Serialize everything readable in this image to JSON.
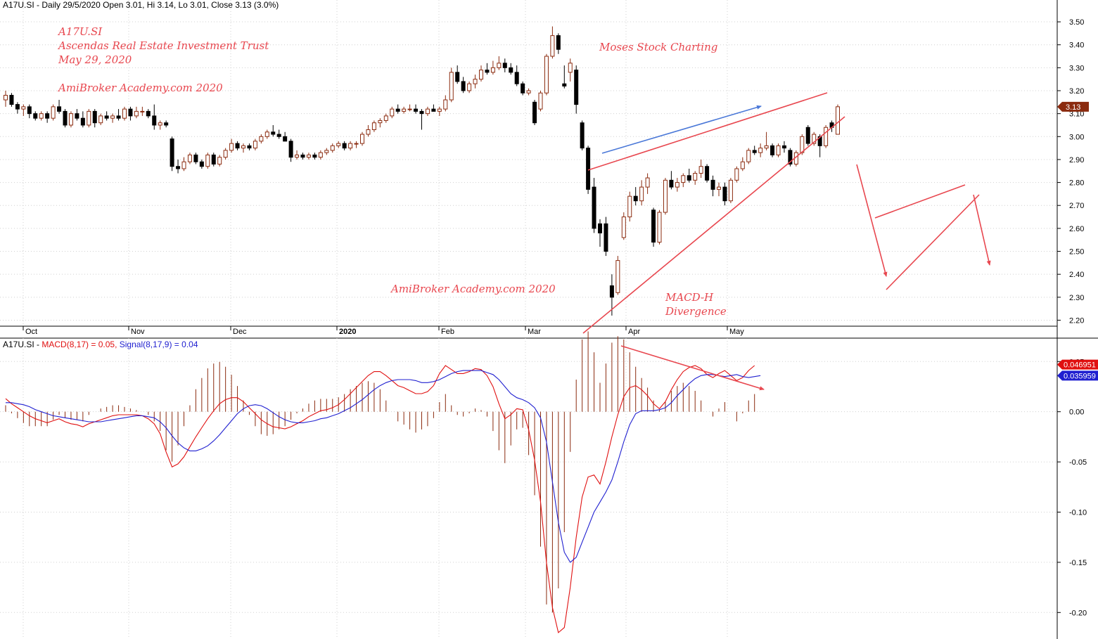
{
  "chart_data": [
    {
      "type": "candlestick",
      "title": "A17U.SI - Daily 29/5/2020 Open 3.01, Hi 3.14, Lo 3.01, Close 3.13 (3.0%)",
      "x_ticks": [
        "Oct",
        "Nov",
        "Dec",
        "2020",
        "Feb",
        "Mar",
        "Apr",
        "May"
      ],
      "y_ticks": [
        "3.50",
        "3.40",
        "3.30",
        "3.20",
        "3.10",
        "3.00",
        "2.90",
        "2.80",
        "2.70",
        "2.60",
        "2.50",
        "2.40",
        "2.30",
        "2.20"
      ],
      "ylim": [
        2.18,
        3.54
      ],
      "last_price_label": "3.13",
      "bullish_color": "#8b2b0f",
      "bearish_color": "#000000",
      "ohlc": [
        [
          3.16,
          3.2,
          3.13,
          3.18
        ],
        [
          3.18,
          3.19,
          3.13,
          3.14
        ],
        [
          3.14,
          3.15,
          3.1,
          3.12
        ],
        [
          3.12,
          3.14,
          3.09,
          3.13
        ],
        [
          3.13,
          3.14,
          3.08,
          3.1
        ],
        [
          3.1,
          3.11,
          3.07,
          3.08
        ],
        [
          3.08,
          3.11,
          3.07,
          3.1
        ],
        [
          3.1,
          3.11,
          3.06,
          3.08
        ],
        [
          3.08,
          3.14,
          3.07,
          3.13
        ],
        [
          3.13,
          3.16,
          3.1,
          3.11
        ],
        [
          3.11,
          3.12,
          3.04,
          3.05
        ],
        [
          3.05,
          3.11,
          3.04,
          3.1
        ],
        [
          3.1,
          3.12,
          3.07,
          3.08
        ],
        [
          3.08,
          3.11,
          3.04,
          3.05
        ],
        [
          3.05,
          3.12,
          3.04,
          3.11
        ],
        [
          3.11,
          3.12,
          3.04,
          3.06
        ],
        [
          3.06,
          3.1,
          3.05,
          3.09
        ],
        [
          3.09,
          3.11,
          3.07,
          3.08
        ],
        [
          3.08,
          3.1,
          3.06,
          3.09
        ],
        [
          3.09,
          3.12,
          3.07,
          3.08
        ],
        [
          3.08,
          3.13,
          3.07,
          3.12
        ],
        [
          3.12,
          3.13,
          3.07,
          3.09
        ],
        [
          3.09,
          3.13,
          3.08,
          3.11
        ],
        [
          3.11,
          3.13,
          3.09,
          3.11
        ],
        [
          3.11,
          3.12,
          3.08,
          3.09
        ],
        [
          3.09,
          3.14,
          3.03,
          3.05
        ],
        [
          3.05,
          3.07,
          3.03,
          3.06
        ],
        [
          3.06,
          3.07,
          3.04,
          3.05
        ],
        [
          2.99,
          3.0,
          2.85,
          2.87
        ],
        [
          2.87,
          2.9,
          2.84,
          2.86
        ],
        [
          2.86,
          2.91,
          2.85,
          2.89
        ],
        [
          2.89,
          2.93,
          2.88,
          2.92
        ],
        [
          2.92,
          2.93,
          2.88,
          2.89
        ],
        [
          2.89,
          2.9,
          2.86,
          2.87
        ],
        [
          2.87,
          2.93,
          2.86,
          2.92
        ],
        [
          2.92,
          2.93,
          2.87,
          2.88
        ],
        [
          2.88,
          2.92,
          2.87,
          2.91
        ],
        [
          2.91,
          2.95,
          2.9,
          2.94
        ],
        [
          2.94,
          2.99,
          2.93,
          2.97
        ],
        [
          2.97,
          2.98,
          2.94,
          2.95
        ],
        [
          2.95,
          2.97,
          2.93,
          2.96
        ],
        [
          2.96,
          2.97,
          2.94,
          2.95
        ],
        [
          2.95,
          2.99,
          2.94,
          2.98
        ],
        [
          2.98,
          3.01,
          2.97,
          3.0
        ],
        [
          3.0,
          3.03,
          2.99,
          3.02
        ],
        [
          3.02,
          3.05,
          3.0,
          3.01
        ],
        [
          3.01,
          3.03,
          2.99,
          3.0
        ],
        [
          3.0,
          3.02,
          2.98,
          2.98
        ],
        [
          2.98,
          2.99,
          2.89,
          2.91
        ],
        [
          2.91,
          2.94,
          2.9,
          2.92
        ],
        [
          2.92,
          2.93,
          2.9,
          2.91
        ],
        [
          2.91,
          2.93,
          2.9,
          2.92
        ],
        [
          2.92,
          2.93,
          2.9,
          2.91
        ],
        [
          2.91,
          2.94,
          2.9,
          2.93
        ],
        [
          2.93,
          2.95,
          2.92,
          2.94
        ],
        [
          2.94,
          2.97,
          2.93,
          2.96
        ],
        [
          2.96,
          2.98,
          2.95,
          2.97
        ],
        [
          2.97,
          2.98,
          2.94,
          2.95
        ],
        [
          2.95,
          2.98,
          2.94,
          2.97
        ],
        [
          2.97,
          2.98,
          2.95,
          2.97
        ],
        [
          2.97,
          3.02,
          2.96,
          3.01
        ],
        [
          3.01,
          3.05,
          3.0,
          3.03
        ],
        [
          3.03,
          3.07,
          3.02,
          3.06
        ],
        [
          3.06,
          3.08,
          3.04,
          3.07
        ],
        [
          3.07,
          3.1,
          3.06,
          3.09
        ],
        [
          3.09,
          3.13,
          3.08,
          3.12
        ],
        [
          3.12,
          3.14,
          3.1,
          3.11
        ],
        [
          3.11,
          3.13,
          3.1,
          3.12
        ],
        [
          3.12,
          3.14,
          3.11,
          3.12
        ],
        [
          3.12,
          3.14,
          3.1,
          3.11
        ],
        [
          3.11,
          3.12,
          3.03,
          3.1
        ],
        [
          3.1,
          3.13,
          3.09,
          3.12
        ],
        [
          3.12,
          3.14,
          3.11,
          3.11
        ],
        [
          3.11,
          3.13,
          3.09,
          3.12
        ],
        [
          3.12,
          3.18,
          3.11,
          3.16
        ],
        [
          3.16,
          3.3,
          3.15,
          3.28
        ],
        [
          3.28,
          3.31,
          3.23,
          3.24
        ],
        [
          3.24,
          3.26,
          3.19,
          3.2
        ],
        [
          3.2,
          3.24,
          3.19,
          3.23
        ],
        [
          3.23,
          3.27,
          3.21,
          3.25
        ],
        [
          3.25,
          3.31,
          3.24,
          3.29
        ],
        [
          3.29,
          3.32,
          3.27,
          3.28
        ],
        [
          3.28,
          3.33,
          3.27,
          3.3
        ],
        [
          3.3,
          3.35,
          3.29,
          3.32
        ],
        [
          3.32,
          3.34,
          3.28,
          3.3
        ],
        [
          3.3,
          3.32,
          3.27,
          3.28
        ],
        [
          3.28,
          3.31,
          3.22,
          3.23
        ],
        [
          3.23,
          3.24,
          3.18,
          3.19
        ],
        [
          3.19,
          3.21,
          3.18,
          3.2
        ],
        [
          3.15,
          3.16,
          3.05,
          3.06
        ],
        [
          3.12,
          3.2,
          3.11,
          3.19
        ],
        [
          3.19,
          3.36,
          3.18,
          3.35
        ],
        [
          3.35,
          3.48,
          3.34,
          3.44
        ],
        [
          3.44,
          3.45,
          3.36,
          3.38
        ],
        [
          3.23,
          3.31,
          3.21,
          3.22
        ],
        [
          3.28,
          3.34,
          3.24,
          3.32
        ],
        [
          3.29,
          3.31,
          3.1,
          3.14
        ],
        [
          3.06,
          3.07,
          2.94,
          2.95
        ],
        [
          2.95,
          2.96,
          2.75,
          2.77
        ],
        [
          2.78,
          2.82,
          2.58,
          2.6
        ],
        [
          2.62,
          2.64,
          2.52,
          2.58
        ],
        [
          2.62,
          2.65,
          2.48,
          2.5
        ],
        [
          2.35,
          2.4,
          2.22,
          2.3
        ],
        [
          2.32,
          2.48,
          2.31,
          2.46
        ],
        [
          2.56,
          2.67,
          2.55,
          2.65
        ],
        [
          2.65,
          2.76,
          2.63,
          2.74
        ],
        [
          2.74,
          2.78,
          2.7,
          2.72
        ],
        [
          2.72,
          2.81,
          2.7,
          2.78
        ],
        [
          2.78,
          2.84,
          2.75,
          2.82
        ],
        [
          2.68,
          2.69,
          2.52,
          2.54
        ],
        [
          2.54,
          2.68,
          2.53,
          2.67
        ],
        [
          2.67,
          2.82,
          2.66,
          2.81
        ],
        [
          2.81,
          2.85,
          2.77,
          2.78
        ],
        [
          2.78,
          2.82,
          2.76,
          2.8
        ],
        [
          2.8,
          2.84,
          2.78,
          2.83
        ],
        [
          2.83,
          2.86,
          2.8,
          2.81
        ],
        [
          2.81,
          2.85,
          2.79,
          2.84
        ],
        [
          2.84,
          2.9,
          2.82,
          2.87
        ],
        [
          2.87,
          2.88,
          2.8,
          2.81
        ],
        [
          2.81,
          2.83,
          2.74,
          2.77
        ],
        [
          2.77,
          2.8,
          2.74,
          2.78
        ],
        [
          2.78,
          2.8,
          2.7,
          2.72
        ],
        [
          2.72,
          2.82,
          2.71,
          2.81
        ],
        [
          2.81,
          2.87,
          2.8,
          2.86
        ],
        [
          2.86,
          2.91,
          2.85,
          2.89
        ],
        [
          2.89,
          2.95,
          2.88,
          2.94
        ],
        [
          2.94,
          2.96,
          2.92,
          2.93
        ],
        [
          2.93,
          2.97,
          2.91,
          2.95
        ],
        [
          2.95,
          3.02,
          2.94,
          2.96
        ],
        [
          2.96,
          2.97,
          2.91,
          2.92
        ],
        [
          2.92,
          2.97,
          2.91,
          2.96
        ],
        [
          2.96,
          2.98,
          2.93,
          2.95
        ],
        [
          2.94,
          2.95,
          2.87,
          2.88
        ],
        [
          2.88,
          2.94,
          2.87,
          2.93
        ],
        [
          2.93,
          3.01,
          2.92,
          3.0
        ],
        [
          3.04,
          3.05,
          2.96,
          2.97
        ],
        [
          2.97,
          3.02,
          2.96,
          3.01
        ],
        [
          3.0,
          3.01,
          2.91,
          2.96
        ],
        [
          2.96,
          3.05,
          2.95,
          3.04
        ],
        [
          3.06,
          3.07,
          3.02,
          3.04
        ],
        [
          3.01,
          3.14,
          3.01,
          3.13
        ]
      ]
    },
    {
      "type": "line",
      "title_prefix": "A17U.SI - ",
      "title_macd": "MACD(8,17) = 0.05, ",
      "title_signal": "Signal(8,17,9) = 0.04",
      "y_ticks": [
        "0.05",
        "0.00",
        "-0.05",
        "-0.10",
        "-0.15",
        "-0.20"
      ],
      "ylim": [
        -0.225,
        0.06
      ],
      "series": [
        {
          "name": "MACD(8,17)",
          "color": "#e01010",
          "values": [
            0.013,
            0.008,
            0.004,
            0.0,
            -0.004,
            -0.007,
            -0.009,
            -0.011,
            -0.009,
            -0.007,
            -0.01,
            -0.012,
            -0.013,
            -0.015,
            -0.012,
            -0.01,
            -0.008,
            -0.006,
            -0.004,
            -0.003,
            -0.003,
            -0.003,
            -0.003,
            -0.004,
            -0.007,
            -0.012,
            -0.022,
            -0.04,
            -0.055,
            -0.052,
            -0.045,
            -0.035,
            -0.025,
            -0.016,
            -0.007,
            0.001,
            0.008,
            0.012,
            0.014,
            0.014,
            0.01,
            0.004,
            -0.002,
            -0.008,
            -0.012,
            -0.015,
            -0.016,
            -0.017,
            -0.015,
            -0.012,
            -0.009,
            -0.005,
            -0.002,
            0.001,
            0.002,
            0.004,
            0.007,
            0.012,
            0.018,
            0.024,
            0.03,
            0.036,
            0.04,
            0.04,
            0.036,
            0.031,
            0.026,
            0.024,
            0.021,
            0.018,
            0.018,
            0.02,
            0.026,
            0.038,
            0.046,
            0.042,
            0.038,
            0.038,
            0.04,
            0.043,
            0.042,
            0.036,
            0.025,
            0.008,
            -0.007,
            -0.003,
            0.003,
            0.002,
            -0.018,
            -0.048,
            -0.09,
            -0.15,
            -0.195,
            -0.22,
            -0.215,
            -0.175,
            -0.125,
            -0.085,
            -0.065,
            -0.063,
            -0.072,
            -0.05,
            -0.025,
            -0.003,
            0.015,
            0.024,
            0.026,
            0.022,
            0.016,
            0.008,
            0.003,
            0.01,
            0.022,
            0.032,
            0.04,
            0.044,
            0.046,
            0.043,
            0.037,
            0.034,
            0.038,
            0.041,
            0.036,
            0.031,
            0.034,
            0.041,
            0.046
          ]
        },
        {
          "name": "Signal(8,17,9)",
          "color": "#2020d0",
          "values": [
            0.009,
            0.009,
            0.008,
            0.007,
            0.005,
            0.002,
            0.0,
            -0.002,
            -0.004,
            -0.005,
            -0.006,
            -0.007,
            -0.008,
            -0.009,
            -0.01,
            -0.01,
            -0.01,
            -0.009,
            -0.008,
            -0.007,
            -0.006,
            -0.005,
            -0.004,
            -0.004,
            -0.005,
            -0.006,
            -0.01,
            -0.016,
            -0.024,
            -0.031,
            -0.036,
            -0.039,
            -0.039,
            -0.037,
            -0.034,
            -0.029,
            -0.023,
            -0.016,
            -0.009,
            -0.002,
            0.003,
            0.006,
            0.007,
            0.006,
            0.003,
            -0.001,
            -0.005,
            -0.008,
            -0.01,
            -0.011,
            -0.011,
            -0.01,
            -0.009,
            -0.007,
            -0.006,
            -0.004,
            -0.002,
            0.001,
            0.004,
            0.008,
            0.012,
            0.017,
            0.022,
            0.026,
            0.029,
            0.031,
            0.032,
            0.032,
            0.032,
            0.031,
            0.029,
            0.029,
            0.03,
            0.032,
            0.035,
            0.038,
            0.04,
            0.041,
            0.041,
            0.041,
            0.041,
            0.039,
            0.037,
            0.032,
            0.025,
            0.018,
            0.014,
            0.012,
            0.009,
            0.004,
            -0.006,
            -0.03,
            -0.07,
            -0.11,
            -0.14,
            -0.15,
            -0.145,
            -0.13,
            -0.115,
            -0.1,
            -0.09,
            -0.08,
            -0.068,
            -0.05,
            -0.03,
            -0.013,
            -0.002,
            0.001,
            0.001,
            0.001,
            0.002,
            0.004,
            0.009,
            0.016,
            0.022,
            0.028,
            0.033,
            0.036,
            0.037,
            0.037,
            0.036,
            0.035,
            0.036,
            0.037,
            0.035,
            0.034,
            0.035,
            0.036
          ]
        }
      ],
      "histogram_color": "#8b2b0f",
      "badges": [
        {
          "text": "0.046951",
          "bg": "#e01010",
          "fg": "#ffffff",
          "value": 0.046951
        },
        {
          "text": "0.035959",
          "bg": "#2020d0",
          "fg": "#ffffff",
          "value": 0.035959
        }
      ]
    }
  ],
  "annotations": {
    "ticker": "A17U.SI",
    "company": "Ascendas Real Estate Investment Trust",
    "date": "May 29, 2020",
    "brand_top": "AmiBroker Academy.com  2020",
    "brand_mid": "AmiBroker Academy.com  2020",
    "moses": "Moses Stock Charting",
    "macd_h": "MACD-H",
    "divergence": "Divergence"
  },
  "colors": {
    "annotation": "#e8474f",
    "trend_blue": "#4a78d8",
    "grid": "#d0d0d0"
  }
}
